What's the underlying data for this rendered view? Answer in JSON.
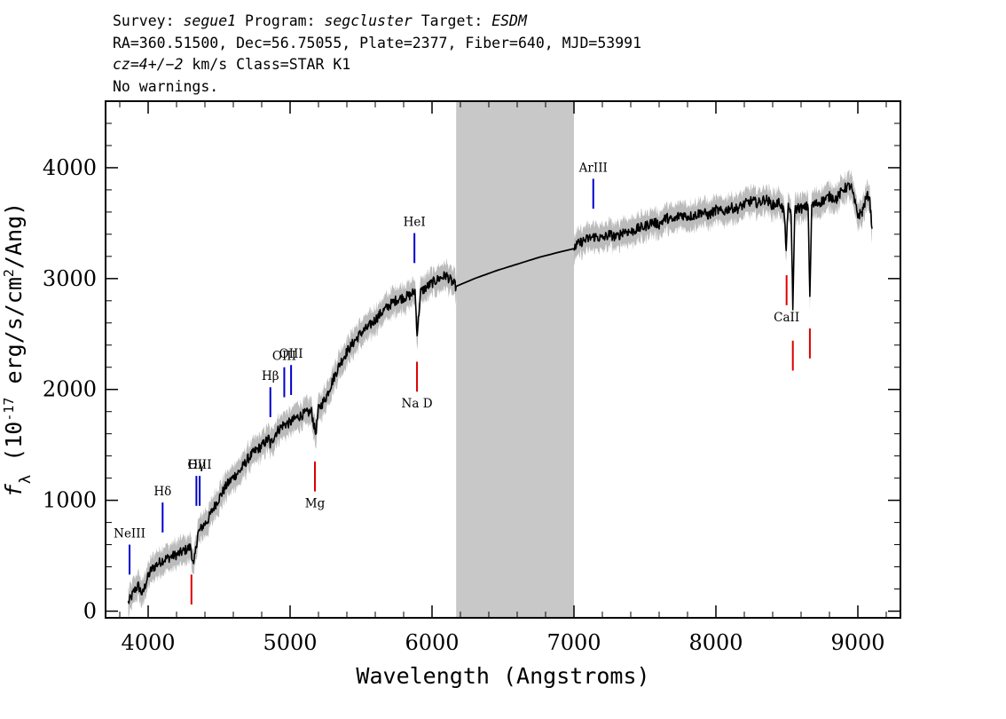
{
  "header": {
    "survey_label": "Survey: ",
    "survey_value": "segue1",
    "program_label": " Program: ",
    "program_value": "segcluster",
    "target_label": " Target: ",
    "target_value": "ESDM",
    "line2": "RA=360.51500, Dec=56.75055, Plate=2377, Fiber=640, MJD=53991",
    "cz_symbol": "cz",
    "cz_value": "=4+/−2",
    "cz_rest": " km/s Class=STAR K1",
    "line4": "No warnings."
  },
  "chart_data": {
    "type": "line",
    "xlabel": "Wavelength (Angstroms)",
    "ylabel_prefix": "f",
    "ylabel_sub": "λ",
    "ylabel_rest": " (10",
    "ylabel_exp": "-17",
    "ylabel_units": " erg/s/cm",
    "ylabel_units_exp": "2",
    "ylabel_tail": "/Ang)",
    "xlim": [
      3700,
      9300
    ],
    "ylim": [
      -60,
      4600
    ],
    "xticks": [
      4000,
      5000,
      6000,
      7000,
      8000,
      9000
    ],
    "xtick_labels": [
      "4000",
      "5000",
      "6000",
      "7000",
      "8000",
      "9000"
    ],
    "yticks": [
      0,
      1000,
      2000,
      3000,
      4000
    ],
    "ytick_labels": [
      "0",
      "1000",
      "2000",
      "3000",
      "4000"
    ],
    "masked_region": [
      6170,
      7000
    ],
    "series": [
      {
        "name": "flux",
        "color": "#000000",
        "x": [
          3860,
          3880,
          3900,
          3930,
          3960,
          3990,
          4020,
          4060,
          4100,
          4140,
          4180,
          4220,
          4260,
          4300,
          4320,
          4350,
          4380,
          4420,
          4460,
          4500,
          4550,
          4600,
          4650,
          4700,
          4750,
          4800,
          4850,
          4860,
          4900,
          4950,
          5000,
          5050,
          5100,
          5150,
          5180,
          5200,
          5250,
          5300,
          5350,
          5400,
          5450,
          5500,
          5550,
          5600,
          5650,
          5700,
          5750,
          5800,
          5850,
          5880,
          5895,
          5920,
          5960,
          6000,
          6050,
          6100,
          6140,
          6170
        ],
        "y": [
          80,
          120,
          180,
          230,
          150,
          280,
          370,
          420,
          460,
          480,
          500,
          520,
          550,
          580,
          400,
          700,
          760,
          820,
          930,
          1020,
          1130,
          1210,
          1270,
          1370,
          1440,
          1490,
          1560,
          1500,
          1610,
          1680,
          1700,
          1750,
          1780,
          1800,
          1600,
          1820,
          1920,
          2080,
          2230,
          2340,
          2430,
          2510,
          2560,
          2630,
          2700,
          2760,
          2810,
          2830,
          2850,
          2890,
          2500,
          2880,
          2920,
          2960,
          3000,
          3030,
          2970,
          2930
        ]
      },
      {
        "name": "model",
        "color": "#000000",
        "x": [
          6170,
          6300,
          6450,
          6600,
          6750,
          6900,
          7000
        ],
        "y": [
          2930,
          3000,
          3070,
          3130,
          3190,
          3240,
          3270
        ]
      },
      {
        "name": "flux_red",
        "color": "#000000",
        "x": [
          7000,
          7050,
          7100,
          7150,
          7200,
          7250,
          7300,
          7350,
          7400,
          7450,
          7500,
          7550,
          7600,
          7650,
          7700,
          7750,
          7800,
          7850,
          7900,
          7950,
          8000,
          8050,
          8100,
          8150,
          8200,
          8250,
          8300,
          8350,
          8400,
          8450,
          8480,
          8495,
          8510,
          8530,
          8542,
          8555,
          8580,
          8620,
          8650,
          8662,
          8675,
          8700,
          8750,
          8800,
          8850,
          8900,
          8950,
          9000,
          9030,
          9060,
          9080,
          9100
        ],
        "y": [
          3280,
          3330,
          3360,
          3380,
          3360,
          3400,
          3370,
          3430,
          3420,
          3450,
          3470,
          3510,
          3490,
          3550,
          3520,
          3580,
          3560,
          3570,
          3600,
          3570,
          3620,
          3600,
          3640,
          3630,
          3670,
          3700,
          3680,
          3720,
          3660,
          3690,
          3600,
          3280,
          3640,
          3600,
          2690,
          3620,
          3640,
          3630,
          3660,
          2800,
          3660,
          3670,
          3700,
          3740,
          3720,
          3810,
          3840,
          3570,
          3600,
          3730,
          3760,
          3450
        ]
      }
    ],
    "emission_lines": [
      {
        "label": "NeIII",
        "wavelength": 3869
      },
      {
        "label": "Hδ",
        "wavelength": 4102
      },
      {
        "label": "Hγ",
        "wavelength": 4340
      },
      {
        "label": "OIII",
        "wavelength": 4363
      },
      {
        "label": "Hβ",
        "wavelength": 4861
      },
      {
        "label": "OIII",
        "wavelength": 4959
      },
      {
        "label": "OIII",
        "wavelength": 5007
      },
      {
        "label": "HeI",
        "wavelength": 5876
      },
      {
        "label": "ArIII",
        "wavelength": 7136
      }
    ],
    "absorption_lines": [
      {
        "label": "",
        "wavelength": 4305
      },
      {
        "label": "Mg",
        "wavelength": 5175
      },
      {
        "label": "Na D",
        "wavelength": 5894
      },
      {
        "label": "CaII",
        "wavelength": 8498
      },
      {
        "label": "",
        "wavelength": 8542
      },
      {
        "label": "",
        "wavelength": 8662
      }
    ],
    "colors": {
      "emission": "#0000cc",
      "absorption": "#dd0000",
      "error_band": "#bbbbbb",
      "mask": "#c8c8c8"
    }
  }
}
